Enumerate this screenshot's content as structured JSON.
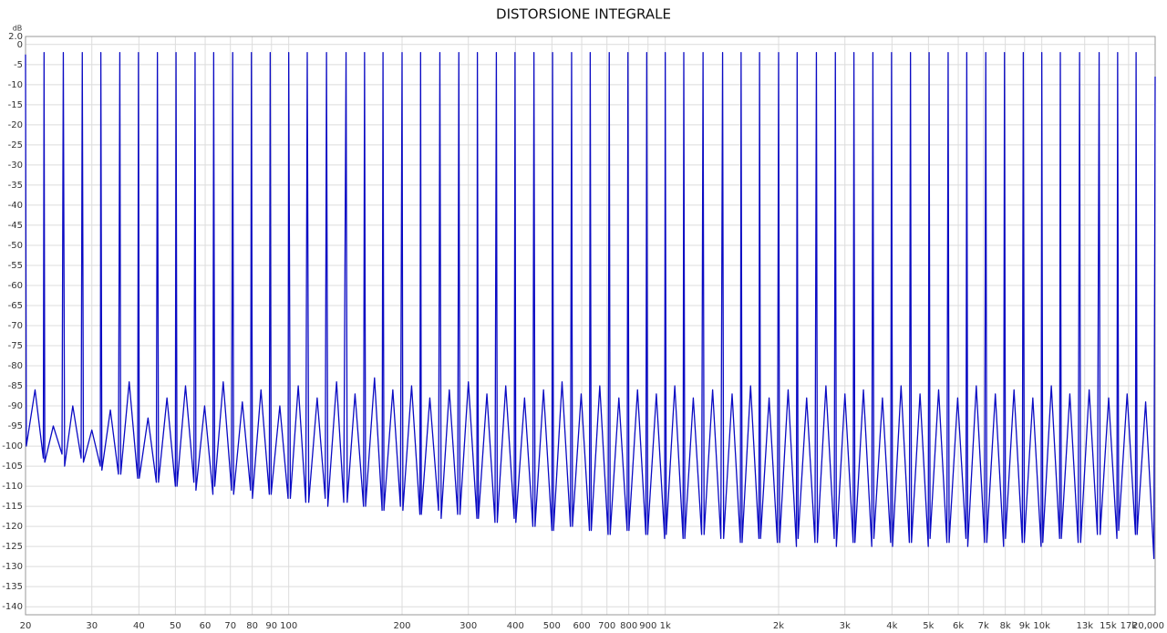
{
  "chart_data": {
    "type": "line",
    "title": "DISTORSIONE INTEGRALE",
    "ylabel": "dB",
    "xscale": "log",
    "grid": true,
    "color": "#0a0ac4",
    "xlim": [
      20,
      20000
    ],
    "ylim": [
      -142,
      2
    ],
    "xticks": [
      20,
      30,
      40,
      50,
      60,
      70,
      80,
      90,
      100,
      200,
      300,
      400,
      500,
      600,
      700,
      800,
      900,
      {
        "value": 1000,
        "label": "1k"
      },
      {
        "value": 2000,
        "label": "2k"
      },
      {
        "value": 3000,
        "label": "3k"
      },
      {
        "value": 4000,
        "label": "4k"
      },
      {
        "value": 5000,
        "label": "5k"
      },
      {
        "value": 6000,
        "label": "6k"
      },
      {
        "value": 7000,
        "label": "7k"
      },
      {
        "value": 8000,
        "label": "8k"
      },
      {
        "value": 9000,
        "label": "9k"
      },
      {
        "value": 10000,
        "label": "10k"
      },
      {
        "value": 13000,
        "label": "13k"
      },
      {
        "value": 15000,
        "label": "15k"
      },
      {
        "value": 17000,
        "label": "17k"
      },
      {
        "value": 20000,
        "label": "20,000"
      }
    ],
    "yticks": [
      {
        "value": 2,
        "label": "2.0"
      },
      0,
      -5,
      -10,
      -15,
      -20,
      -25,
      -30,
      -35,
      -40,
      -45,
      -50,
      -55,
      -60,
      -65,
      -70,
      -75,
      -80,
      -85,
      -90,
      -95,
      -100,
      -105,
      -110,
      -115,
      -120,
      -125,
      -130,
      -135,
      -140
    ],
    "x": [
      20,
      20.1,
      21.2,
      22.3,
      22.4,
      22.5,
      23.7,
      25,
      25.2,
      25.4,
      26.7,
      28.1,
      28.3,
      28.5,
      30,
      31.6,
      31.7,
      31.9,
      33.6,
      35.3,
      35.6,
      35.8,
      37.7,
      39.7,
      39.9,
      40.1,
      42.3,
      44.5,
      44.8,
      45.1,
      47.5,
      50,
      50.2,
      50.5,
      53.2,
      56,
      56.4,
      56.7,
      59.8,
      62.9,
      63.2,
      63.6,
      67,
      70.5,
      71,
      71.4,
      75.3,
      79.2,
      79.6,
      80.1,
      84.4,
      88.8,
      89.3,
      89.8,
      94.7,
      99.6,
      100,
      101,
      106,
      111,
      112,
      113,
      119,
      125,
      126,
      127,
      134,
      140,
      142,
      143,
      150,
      158,
      159,
      160,
      169,
      177,
      178,
      179,
      189,
      198,
      200,
      201,
      212,
      223,
      224,
      225,
      237,
      250,
      252,
      254,
      267,
      281,
      283,
      285,
      300,
      316,
      317,
      319,
      336,
      353,
      356,
      358,
      377,
      397,
      399,
      401,
      423,
      445,
      448,
      451,
      475,
      500,
      502,
      505,
      532,
      560,
      564,
      567,
      598,
      629,
      632,
      636,
      670,
      705,
      710,
      714,
      753,
      792,
      796,
      801,
      844,
      888,
      893,
      898,
      947,
      996,
      1000,
      1006,
      1060,
      1115,
      1120,
      1127,
      1187,
      1249,
      1260,
      1268,
      1336,
      1405,
      1420,
      1429,
      1505,
      1583,
      1590,
      1600,
      1685,
      1773,
      1780,
      1791,
      1887,
      1985,
      2000,
      2012,
      2120,
      2230,
      2240,
      2253,
      2374,
      2498,
      2520,
      2535,
      2671,
      2810,
      2830,
      2847,
      3000,
      3155,
      3170,
      3189,
      3360,
      3535,
      3560,
      3581,
      3774,
      3969,
      3990,
      4014,
      4229,
      4449,
      4480,
      4507,
      4749,
      4995,
      5020,
      5050,
      5321,
      5597,
      5640,
      5674,
      5978,
      6289,
      6320,
      6358,
      6699,
      7047,
      7100,
      7143,
      7526,
      7917,
      7960,
      8008,
      8438,
      8875,
      8930,
      8984,
      9466,
      9957,
      10000,
      10060,
      10600,
      11150,
      11200,
      11270,
      11870,
      12490,
      12600,
      12680,
      13360,
      14050,
      14200,
      14290,
      15050,
      15830,
      15900,
      16000,
      16850,
      17730,
      17800,
      17910,
      18870,
      19850,
      20000
    ],
    "values": [
      -2.5,
      -100,
      -86,
      -103,
      -2,
      -104,
      -95,
      -102,
      -2,
      -105,
      -90,
      -103,
      -2,
      -104,
      -96,
      -105,
      -2,
      -106,
      -91,
      -107,
      -2,
      -107,
      -84,
      -108,
      -2,
      -108,
      -93,
      -109,
      -2,
      -109,
      -88,
      -110,
      -2,
      -110,
      -85,
      -109,
      -2,
      -111,
      -90,
      -112,
      -2,
      -110,
      -84,
      -111,
      -2,
      -112,
      -89,
      -111,
      -2,
      -113,
      -86,
      -112,
      -2,
      -112,
      -90,
      -113,
      -2,
      -113,
      -85,
      -114,
      -2,
      -114,
      -88,
      -113,
      -2,
      -115,
      -84,
      -114,
      -2,
      -114,
      -87,
      -115,
      -2,
      -115,
      -83,
      -116,
      -2,
      -116,
      -86,
      -115,
      -2,
      -116,
      -85,
      -117,
      -2,
      -117,
      -88,
      -116,
      -2,
      -118,
      -86,
      -117,
      -2,
      -117,
      -84,
      -118,
      -2,
      -118,
      -87,
      -119,
      -2,
      -119,
      -85,
      -118,
      -2,
      -119,
      -88,
      -120,
      -2,
      -120,
      -86,
      -121,
      -2,
      -121,
      -84,
      -120,
      -2,
      -120,
      -87,
      -121,
      -2,
      -121,
      -85,
      -122,
      -2,
      -122,
      -88,
      -121,
      -2,
      -121,
      -86,
      -122,
      -2,
      -122,
      -87,
      -123,
      -2,
      -122,
      -85,
      -123,
      -2,
      -123,
      -88,
      -122,
      -2,
      -122,
      -86,
      -123,
      -2,
      -123,
      -87,
      -124,
      -2,
      -124,
      -85,
      -123,
      -2,
      -123,
      -88,
      -124,
      -2,
      -124,
      -86,
      -125,
      -2,
      -123,
      -88,
      -124,
      -2,
      -124,
      -85,
      -123,
      -2,
      -125,
      -87,
      -124,
      -2,
      -124,
      -86,
      -125,
      -2,
      -123,
      -88,
      -124,
      -2,
      -125,
      -85,
      -124,
      -2,
      -124,
      -87,
      -125,
      -2,
      -123,
      -86,
      -124,
      -2,
      -124,
      -88,
      -123,
      -2,
      -125,
      -85,
      -124,
      -2,
      -124,
      -87,
      -125,
      -2,
      -123,
      -86,
      -124,
      -2,
      -124,
      -88,
      -125,
      -2,
      -124,
      -85,
      -123,
      -2,
      -123,
      -87,
      -124,
      -2,
      -124,
      -86,
      -122,
      -2,
      -122,
      -88,
      -123,
      -2,
      -121,
      -87,
      -122,
      -2,
      -122,
      -89,
      -128,
      -8
    ]
  }
}
